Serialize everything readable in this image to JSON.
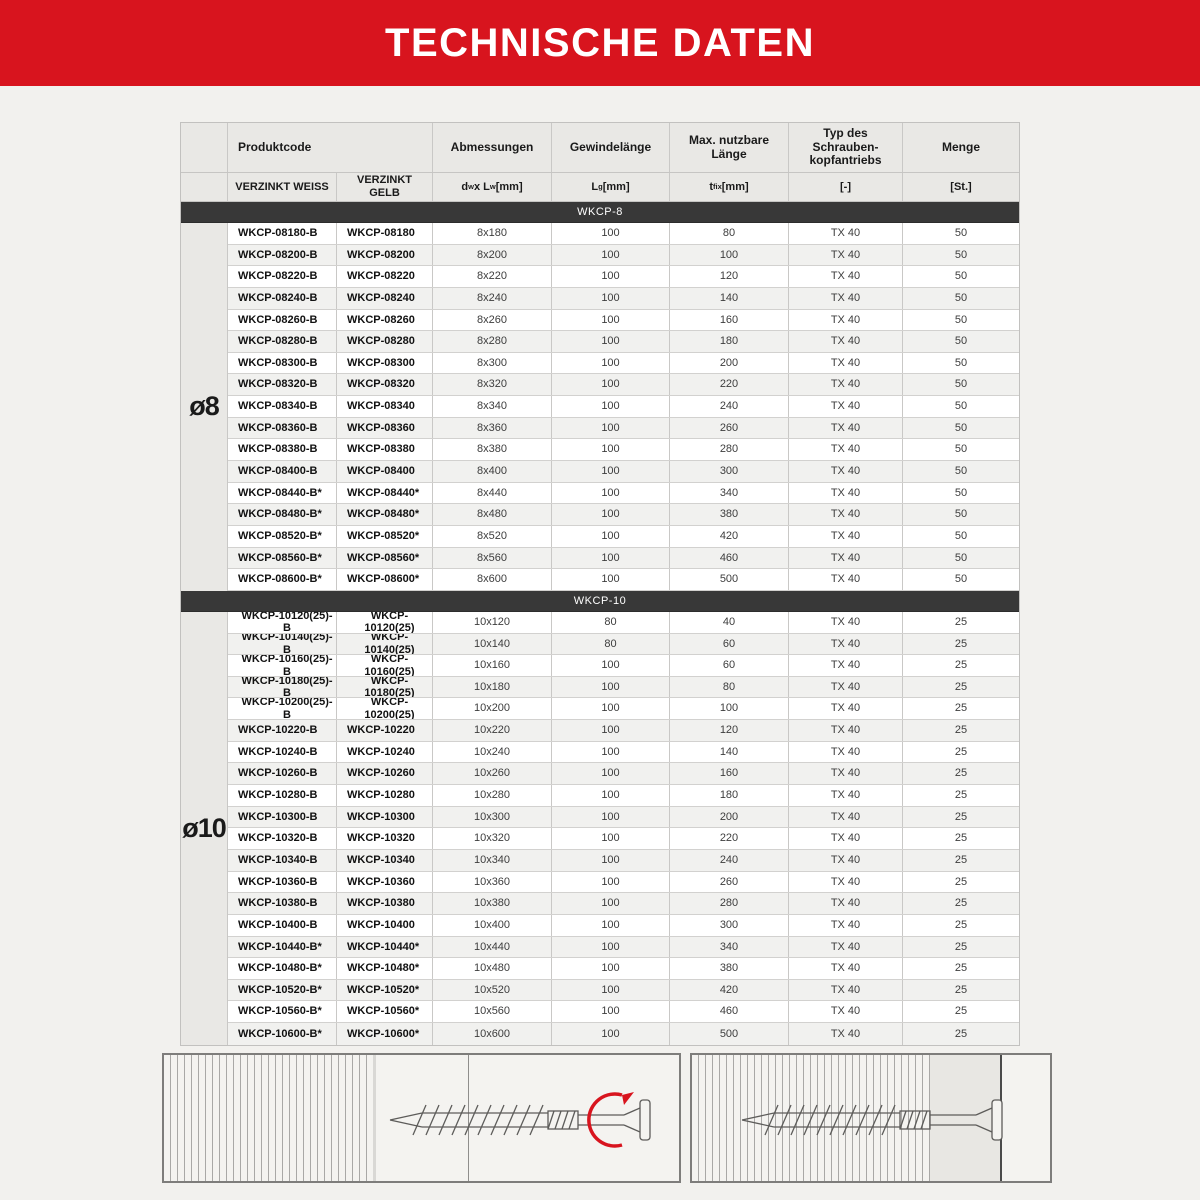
{
  "page": {
    "title": "TECHNISCHE DATEN"
  },
  "colors": {
    "accent_red": "#d8141e",
    "section_bar": "#383838",
    "header_gray": "#e9e8e5"
  },
  "table": {
    "header": {
      "produktcode": "Produktcode",
      "abmessungen": "Abmessungen",
      "gewindelaenge": "Gewindelänge",
      "max_nutzbare_laenge": "Max. nutzbare Länge",
      "typ_antrieb": "Typ des Schrauben-kopfantriebs",
      "menge": "Menge"
    },
    "subheader": {
      "verzinkt_weiss": "VERZINKT WEISS",
      "verzinkt_gelb": "VERZINKT GELB",
      "dims": "d~w~ x L~w~ [mm]",
      "gewinde": "L~g~ [mm]",
      "tfix": "t~fix~ [mm]",
      "antrieb_unit": "[-]",
      "menge_unit": "[St.]"
    },
    "columns": [
      "VERZINKT WEISS",
      "VERZINKT GELB",
      "Abmessungen",
      "Gewindelänge",
      "Max. nutzbare Länge",
      "Typ des Schraubenkopfantriebs",
      "Menge"
    ],
    "sections": [
      {
        "label": "WKCP-8",
        "diameter": "ø8",
        "rows": [
          [
            "WKCP-08180-B",
            "WKCP-08180",
            "8x180",
            "100",
            "80",
            "TX 40",
            "50"
          ],
          [
            "WKCP-08200-B",
            "WKCP-08200",
            "8x200",
            "100",
            "100",
            "TX 40",
            "50"
          ],
          [
            "WKCP-08220-B",
            "WKCP-08220",
            "8x220",
            "100",
            "120",
            "TX 40",
            "50"
          ],
          [
            "WKCP-08240-B",
            "WKCP-08240",
            "8x240",
            "100",
            "140",
            "TX 40",
            "50"
          ],
          [
            "WKCP-08260-B",
            "WKCP-08260",
            "8x260",
            "100",
            "160",
            "TX 40",
            "50"
          ],
          [
            "WKCP-08280-B",
            "WKCP-08280",
            "8x280",
            "100",
            "180",
            "TX 40",
            "50"
          ],
          [
            "WKCP-08300-B",
            "WKCP-08300",
            "8x300",
            "100",
            "200",
            "TX 40",
            "50"
          ],
          [
            "WKCP-08320-B",
            "WKCP-08320",
            "8x320",
            "100",
            "220",
            "TX 40",
            "50"
          ],
          [
            "WKCP-08340-B",
            "WKCP-08340",
            "8x340",
            "100",
            "240",
            "TX 40",
            "50"
          ],
          [
            "WKCP-08360-B",
            "WKCP-08360",
            "8x360",
            "100",
            "260",
            "TX 40",
            "50"
          ],
          [
            "WKCP-08380-B",
            "WKCP-08380",
            "8x380",
            "100",
            "280",
            "TX 40",
            "50"
          ],
          [
            "WKCP-08400-B",
            "WKCP-08400",
            "8x400",
            "100",
            "300",
            "TX 40",
            "50"
          ],
          [
            "WKCP-08440-B*",
            "WKCP-08440*",
            "8x440",
            "100",
            "340",
            "TX 40",
            "50"
          ],
          [
            "WKCP-08480-B*",
            "WKCP-08480*",
            "8x480",
            "100",
            "380",
            "TX 40",
            "50"
          ],
          [
            "WKCP-08520-B*",
            "WKCP-08520*",
            "8x520",
            "100",
            "420",
            "TX 40",
            "50"
          ],
          [
            "WKCP-08560-B*",
            "WKCP-08560*",
            "8x560",
            "100",
            "460",
            "TX 40",
            "50"
          ],
          [
            "WKCP-08600-B*",
            "WKCP-08600*",
            "8x600",
            "100",
            "500",
            "TX 40",
            "50"
          ]
        ]
      },
      {
        "label": "WKCP-10",
        "diameter": "ø10",
        "rows": [
          [
            "WKCP-10120(25)-B",
            "WKCP-10120(25)",
            "10x120",
            "80",
            "40",
            "TX 40",
            "25"
          ],
          [
            "WKCP-10140(25)-B",
            "WKCP-10140(25)",
            "10x140",
            "80",
            "60",
            "TX 40",
            "25"
          ],
          [
            "WKCP-10160(25)-B",
            "WKCP-10160(25)",
            "10x160",
            "100",
            "60",
            "TX 40",
            "25"
          ],
          [
            "WKCP-10180(25)-B",
            "WKCP-10180(25)",
            "10x180",
            "100",
            "80",
            "TX 40",
            "25"
          ],
          [
            "WKCP-10200(25)-B",
            "WKCP-10200(25)",
            "10x200",
            "100",
            "100",
            "TX 40",
            "25"
          ],
          [
            "WKCP-10220-B",
            "WKCP-10220",
            "10x220",
            "100",
            "120",
            "TX 40",
            "25"
          ],
          [
            "WKCP-10240-B",
            "WKCP-10240",
            "10x240",
            "100",
            "140",
            "TX 40",
            "25"
          ],
          [
            "WKCP-10260-B",
            "WKCP-10260",
            "10x260",
            "100",
            "160",
            "TX 40",
            "25"
          ],
          [
            "WKCP-10280-B",
            "WKCP-10280",
            "10x280",
            "100",
            "180",
            "TX 40",
            "25"
          ],
          [
            "WKCP-10300-B",
            "WKCP-10300",
            "10x300",
            "100",
            "200",
            "TX 40",
            "25"
          ],
          [
            "WKCP-10320-B",
            "WKCP-10320",
            "10x320",
            "100",
            "220",
            "TX 40",
            "25"
          ],
          [
            "WKCP-10340-B",
            "WKCP-10340",
            "10x340",
            "100",
            "240",
            "TX 40",
            "25"
          ],
          [
            "WKCP-10360-B",
            "WKCP-10360",
            "10x360",
            "100",
            "260",
            "TX 40",
            "25"
          ],
          [
            "WKCP-10380-B",
            "WKCP-10380",
            "10x380",
            "100",
            "280",
            "TX 40",
            "25"
          ],
          [
            "WKCP-10400-B",
            "WKCP-10400",
            "10x400",
            "100",
            "300",
            "TX 40",
            "25"
          ],
          [
            "WKCP-10440-B*",
            "WKCP-10440*",
            "10x440",
            "100",
            "340",
            "TX 40",
            "25"
          ],
          [
            "WKCP-10480-B*",
            "WKCP-10480*",
            "10x480",
            "100",
            "380",
            "TX 40",
            "25"
          ],
          [
            "WKCP-10520-B*",
            "WKCP-10520*",
            "10x520",
            "100",
            "420",
            "TX 40",
            "25"
          ],
          [
            "WKCP-10560-B*",
            "WKCP-10560*",
            "10x560",
            "100",
            "460",
            "TX 40",
            "25"
          ],
          [
            "WKCP-10600-B*",
            "WKCP-10600*",
            "10x600",
            "100",
            "500",
            "TX 40",
            "25"
          ]
        ]
      }
    ]
  }
}
